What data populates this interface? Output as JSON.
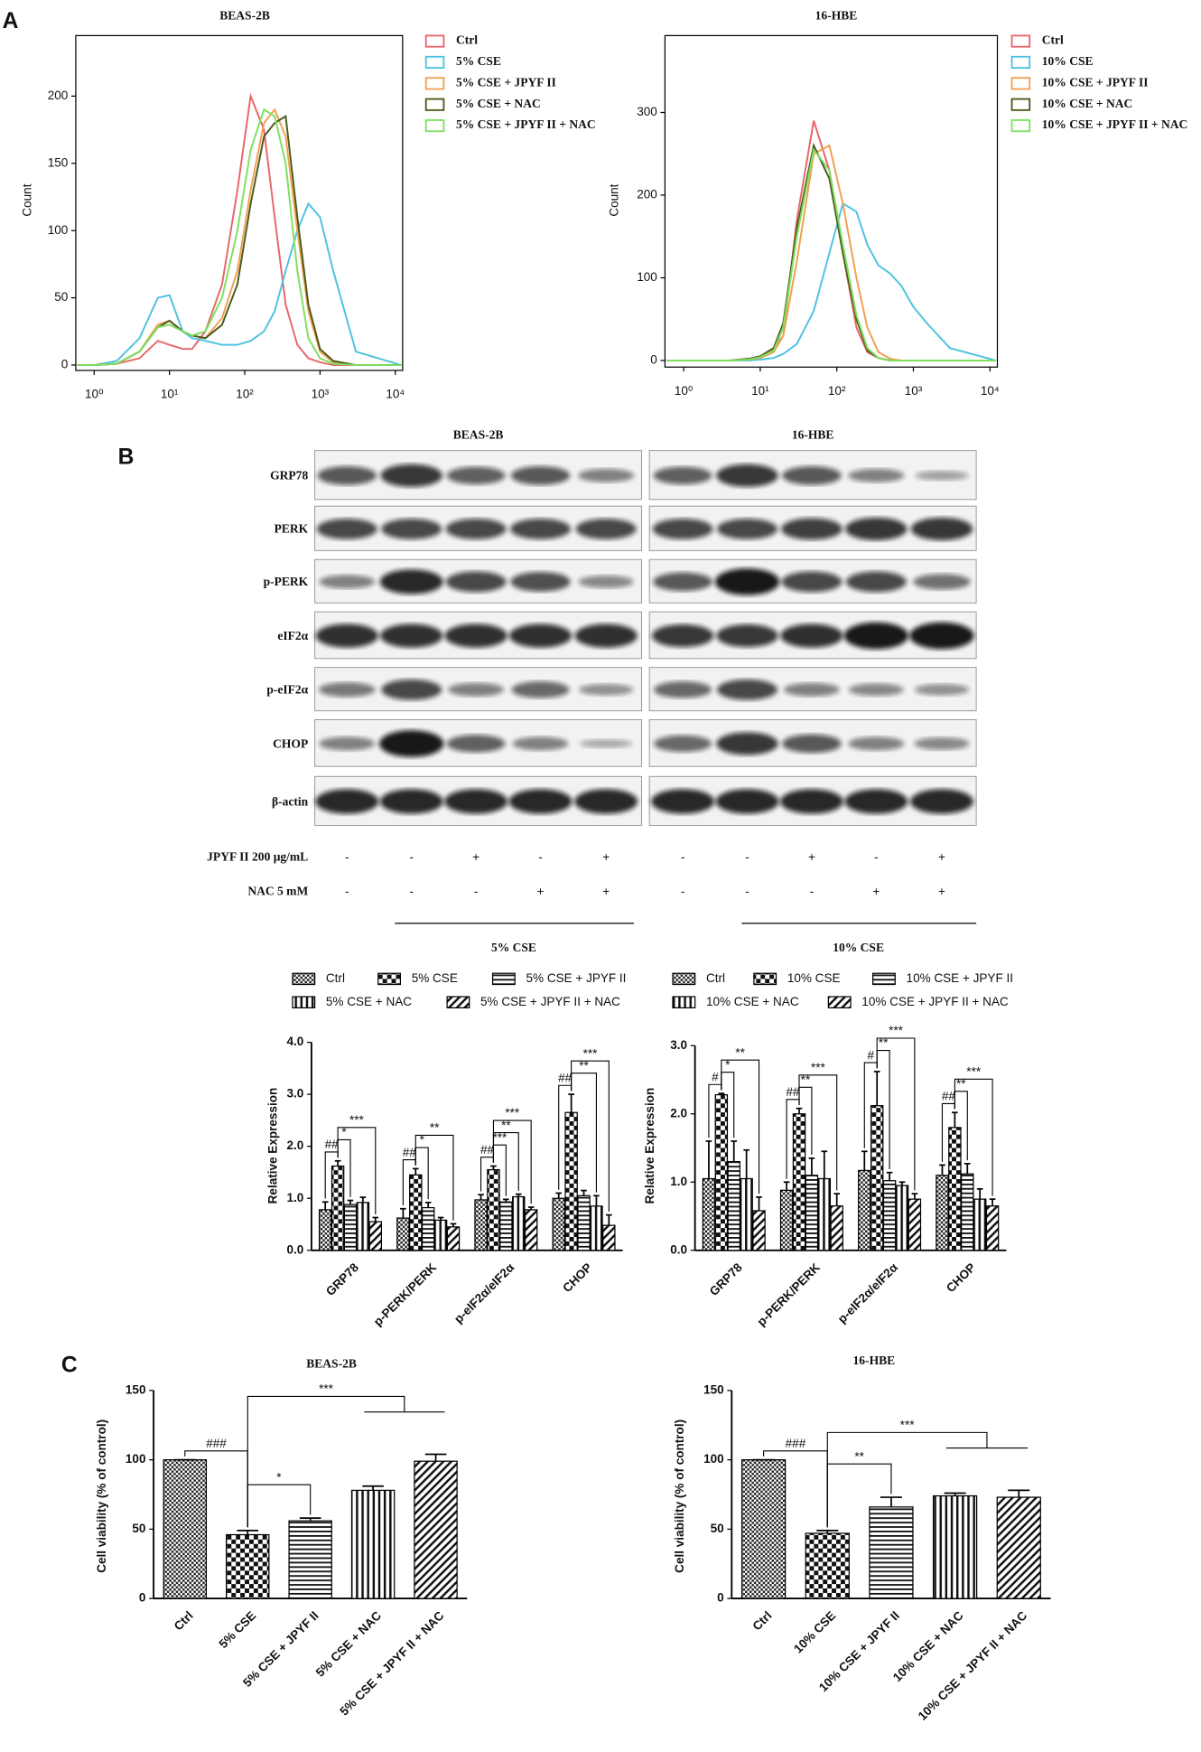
{
  "panel_labels": [
    "A",
    "B",
    "C"
  ],
  "western_blot": {
    "cell_lines": [
      "BEAS-2B",
      "16-HBE"
    ],
    "proteins": [
      "GRP78",
      "PERK",
      "p-PERK",
      "eIF2α",
      "p-eIF2α",
      "CHOP",
      "β-actin"
    ],
    "treatments": [
      {
        "label": "JPYF II 200 μg/mL",
        "signs": [
          "-",
          "-",
          "+",
          "-",
          "+",
          "-",
          "-",
          "+",
          "-",
          "+"
        ]
      },
      {
        "label": "NAC 5 mM",
        "signs": [
          "-",
          "-",
          "-",
          "+",
          "+",
          "-",
          "-",
          "-",
          "+",
          "+"
        ]
      }
    ],
    "groups": [
      "5% CSE",
      "10% CSE"
    ]
  },
  "chart_data": [
    {
      "type": "line",
      "title": "BEAS-2B",
      "y_label": "Count",
      "x_scale": "log",
      "x": [
        0.6,
        1,
        2,
        4,
        7,
        10,
        15,
        20,
        30,
        50,
        80,
        120,
        180,
        250,
        350,
        500,
        700,
        1000,
        1500,
        3000,
        12000
      ],
      "xlim": [
        0.57,
        12500
      ],
      "xticks": [
        {
          "value": 1,
          "label": "10⁰"
        },
        {
          "value": 10,
          "label": "10¹"
        },
        {
          "value": 100,
          "label": "10²"
        },
        {
          "value": 1000,
          "label": "10³"
        },
        {
          "value": 10000,
          "label": "10⁴"
        }
      ],
      "ylim": [
        -4,
        245
      ],
      "yticks": [
        0,
        50,
        100,
        150,
        200
      ],
      "series": [
        {
          "name": "Ctrl",
          "color": "#e8666a",
          "values": [
            0,
            0,
            1,
            5,
            18,
            15,
            12,
            12,
            25,
            60,
            130,
            200,
            175,
            110,
            45,
            15,
            5,
            2,
            0,
            0,
            0
          ]
        },
        {
          "name": "5% CSE",
          "color": "#4ec3e0",
          "values": [
            0,
            0,
            3,
            20,
            50,
            52,
            25,
            20,
            18,
            15,
            15,
            18,
            25,
            40,
            70,
            100,
            120,
            110,
            70,
            10,
            0
          ]
        },
        {
          "name": "5% CSE + JPYF II",
          "color": "#f0a050",
          "values": [
            0,
            0,
            1,
            10,
            30,
            33,
            25,
            22,
            20,
            35,
            70,
            130,
            180,
            190,
            170,
            100,
            40,
            10,
            2,
            0,
            0
          ]
        },
        {
          "name": "5% CSE + NAC",
          "color": "#4a5a1a",
          "values": [
            0,
            0,
            1,
            10,
            28,
            33,
            25,
            22,
            20,
            30,
            60,
            120,
            170,
            180,
            185,
            110,
            45,
            12,
            3,
            0,
            0
          ]
        },
        {
          "name": "5% CSE + JPYF II + NAC",
          "color": "#7fe060",
          "values": [
            0,
            0,
            1,
            10,
            28,
            30,
            25,
            22,
            25,
            50,
            100,
            160,
            190,
            185,
            150,
            70,
            20,
            5,
            1,
            0,
            0
          ]
        }
      ]
    },
    {
      "type": "line",
      "title": "16-HBE",
      "y_label": "Count",
      "x_scale": "log",
      "x": [
        0.6,
        1,
        2,
        4,
        7,
        10,
        15,
        20,
        30,
        50,
        80,
        120,
        180,
        250,
        350,
        500,
        700,
        1000,
        1500,
        3000,
        12000
      ],
      "xlim": [
        0.57,
        12500
      ],
      "xticks": [
        {
          "value": 1,
          "label": "10⁰"
        },
        {
          "value": 10,
          "label": "10¹"
        },
        {
          "value": 100,
          "label": "10²"
        },
        {
          "value": 1000,
          "label": "10³"
        },
        {
          "value": 10000,
          "label": "10⁴"
        }
      ],
      "ylim": [
        -8,
        393
      ],
      "yticks": [
        0,
        100,
        200,
        300
      ],
      "series": [
        {
          "name": "Ctrl",
          "color": "#e8666a",
          "values": [
            0,
            0,
            0,
            0,
            2,
            5,
            15,
            30,
            170,
            290,
            230,
            130,
            40,
            10,
            3,
            0,
            0,
            0,
            0,
            0,
            0
          ]
        },
        {
          "name": "10% CSE",
          "color": "#4ec3e0",
          "values": [
            0,
            0,
            0,
            0,
            0,
            1,
            3,
            8,
            20,
            60,
            130,
            190,
            180,
            140,
            115,
            105,
            90,
            65,
            45,
            15,
            0
          ]
        },
        {
          "name": "10% CSE + JPYF II",
          "color": "#f0a050",
          "values": [
            0,
            0,
            0,
            0,
            1,
            3,
            10,
            30,
            120,
            250,
            260,
            190,
            100,
            40,
            10,
            2,
            0,
            0,
            0,
            0,
            0
          ]
        },
        {
          "name": "10% CSE + NAC",
          "color": "#4a5a1a",
          "values": [
            0,
            0,
            0,
            0,
            2,
            5,
            15,
            45,
            160,
            260,
            220,
            130,
            50,
            12,
            3,
            0,
            0,
            0,
            0,
            0,
            0
          ]
        },
        {
          "name": "10% CSE + JPYF II + NAC",
          "color": "#7fe060",
          "values": [
            0,
            0,
            0,
            0,
            1,
            4,
            12,
            40,
            150,
            255,
            230,
            140,
            55,
            15,
            3,
            0,
            0,
            0,
            0,
            0,
            0
          ]
        }
      ]
    },
    {
      "type": "bar",
      "y_label": "Relative Expression",
      "categories": [
        "GRP78",
        "p-PERK/PERK",
        "p-eIF2α/eIF2α",
        "CHOP"
      ],
      "ylim": [
        0,
        4
      ],
      "yticks": [
        {
          "value": 0,
          "label": "0.0"
        },
        {
          "value": 1,
          "label": "1.0"
        },
        {
          "value": 2,
          "label": "2.0"
        },
        {
          "value": 3,
          "label": "3.0"
        },
        {
          "value": 4,
          "label": "4.0"
        }
      ],
      "series": [
        {
          "name": "Ctrl",
          "color": "#000000",
          "pattern": "checker",
          "values": [
            0.78,
            0.62,
            0.97,
            1.0
          ],
          "errors": [
            0.15,
            0.18,
            0.1,
            0.1
          ]
        },
        {
          "name": "5% CSE",
          "color": "#000000",
          "pattern": "big-checker",
          "values": [
            1.62,
            1.45,
            1.55,
            2.65
          ],
          "errors": [
            0.1,
            0.12,
            0.07,
            0.35
          ]
        },
        {
          "name": "5% CSE + JPYF II",
          "color": "#000000",
          "pattern": "hlines",
          "values": [
            0.88,
            0.82,
            0.93,
            1.05
          ],
          "errors": [
            0.08,
            0.1,
            0.05,
            0.1
          ]
        },
        {
          "name": "5% CSE + NAC",
          "color": "#000000",
          "pattern": "vlines",
          "values": [
            0.92,
            0.58,
            1.03,
            0.85
          ],
          "errors": [
            0.1,
            0.05,
            0.05,
            0.2
          ]
        },
        {
          "name": "5% CSE + JPYF II + NAC",
          "color": "#000000",
          "pattern": "diagonal",
          "values": [
            0.55,
            0.45,
            0.78,
            0.48
          ],
          "errors": [
            0.08,
            0.06,
            0.05,
            0.2
          ]
        }
      ],
      "annotations": [
        {
          "text": "##",
          "category": 0,
          "bars": [
            0,
            1
          ]
        },
        {
          "text": "*",
          "category": 0,
          "bars": [
            1,
            2
          ]
        },
        {
          "text": "***",
          "category": 0,
          "bars": [
            1,
            4
          ]
        },
        {
          "text": "##",
          "category": 1,
          "bars": [
            0,
            1
          ]
        },
        {
          "text": "*",
          "category": 1,
          "bars": [
            1,
            2
          ]
        },
        {
          "text": "**",
          "category": 1,
          "bars": [
            1,
            4
          ]
        },
        {
          "text": "##",
          "category": 2,
          "bars": [
            0,
            1
          ]
        },
        {
          "text": "***",
          "category": 2,
          "bars": [
            1,
            2
          ]
        },
        {
          "text": "**",
          "category": 2,
          "bars": [
            1,
            3
          ]
        },
        {
          "text": "***",
          "category": 2,
          "bars": [
            1,
            4
          ]
        },
        {
          "text": "##",
          "category": 3,
          "bars": [
            0,
            1
          ]
        },
        {
          "text": "**",
          "category": 3,
          "bars": [
            1,
            3
          ]
        },
        {
          "text": "***",
          "category": 3,
          "bars": [
            1,
            4
          ]
        }
      ]
    },
    {
      "type": "bar",
      "y_label": "Relative Expression",
      "categories": [
        "GRP78",
        "p-PERK/PERK",
        "p-eIF2α/eIF2α",
        "CHOP"
      ],
      "ylim": [
        0,
        3
      ],
      "yticks": [
        {
          "value": 0,
          "label": "0.0"
        },
        {
          "value": 1,
          "label": "1.0"
        },
        {
          "value": 2,
          "label": "2.0"
        },
        {
          "value": 3,
          "label": "3.0"
        }
      ],
      "series": [
        {
          "name": "Ctrl",
          "color": "#000000",
          "pattern": "checker",
          "values": [
            1.05,
            0.88,
            1.17,
            1.1
          ],
          "errors": [
            0.55,
            0.12,
            0.28,
            0.15
          ]
        },
        {
          "name": "10% CSE",
          "color": "#000000",
          "pattern": "big-checker",
          "values": [
            2.28,
            2.0,
            2.12,
            1.8
          ],
          "errors": [
            0.02,
            0.08,
            0.5,
            0.22
          ]
        },
        {
          "name": "10% CSE + JPYF II",
          "color": "#000000",
          "pattern": "hlines",
          "values": [
            1.3,
            1.1,
            1.02,
            1.12
          ],
          "errors": [
            0.3,
            0.25,
            0.12,
            0.15
          ]
        },
        {
          "name": "10% CSE + NAC",
          "color": "#000000",
          "pattern": "vlines",
          "values": [
            1.05,
            1.05,
            0.95,
            0.75
          ],
          "errors": [
            0.42,
            0.4,
            0.05,
            0.15
          ]
        },
        {
          "name": "10% CSE + JPYF II + NAC",
          "color": "#000000",
          "pattern": "diagonal",
          "values": [
            0.58,
            0.65,
            0.75,
            0.65
          ],
          "errors": [
            0.2,
            0.18,
            0.08,
            0.1
          ]
        }
      ],
      "annotations": [
        {
          "text": "#",
          "category": 0,
          "bars": [
            0,
            1
          ]
        },
        {
          "text": "*",
          "category": 0,
          "bars": [
            1,
            2
          ]
        },
        {
          "text": "**",
          "category": 0,
          "bars": [
            1,
            4
          ]
        },
        {
          "text": "##",
          "category": 1,
          "bars": [
            0,
            1
          ]
        },
        {
          "text": "**",
          "category": 1,
          "bars": [
            1,
            2
          ]
        },
        {
          "text": "***",
          "category": 1,
          "bars": [
            1,
            4
          ]
        },
        {
          "text": "#",
          "category": 2,
          "bars": [
            0,
            1
          ]
        },
        {
          "text": "**",
          "category": 2,
          "bars": [
            1,
            2
          ]
        },
        {
          "text": "***",
          "category": 2,
          "bars": [
            1,
            4
          ]
        },
        {
          "text": "##",
          "category": 3,
          "bars": [
            0,
            1
          ]
        },
        {
          "text": "**",
          "category": 3,
          "bars": [
            1,
            2
          ]
        },
        {
          "text": "***",
          "category": 3,
          "bars": [
            1,
            4
          ]
        }
      ]
    },
    {
      "type": "bar",
      "title": "BEAS-2B",
      "y_label": "Cell viability (% of control)",
      "categories": [
        "Ctrl",
        "5% CSE",
        "5% CSE + JPYF II",
        "5% CSE + NAC",
        "5% CSE + JPYF II + NAC"
      ],
      "values": [
        100,
        46,
        56,
        78,
        99
      ],
      "errors": [
        0,
        3,
        2,
        3,
        5
      ],
      "color": "#000000",
      "patterns": [
        "checker",
        "big-checker",
        "hlines",
        "vlines",
        "diagonal"
      ],
      "ylim": [
        0,
        150
      ],
      "yticks": [
        0,
        50,
        100,
        150
      ],
      "annotations": [
        {
          "text": "###",
          "bars": [
            0,
            1
          ]
        },
        {
          "text": "*",
          "bars": [
            1,
            2
          ]
        },
        {
          "text": "***",
          "bars": [
            1,
            3,
            4
          ]
        }
      ]
    },
    {
      "type": "bar",
      "title": "16-HBE",
      "y_label": "Cell viability (% of control)",
      "categories": [
        "Ctrl",
        "10% CSE",
        "10% CSE + JPYF II",
        "10% CSE + NAC",
        "10% CSE + JPYF II + NAC"
      ],
      "values": [
        100,
        47,
        66,
        74,
        73
      ],
      "errors": [
        0,
        2,
        7,
        2,
        5
      ],
      "color": "#000000",
      "patterns": [
        "checker",
        "big-checker",
        "hlines",
        "vlines",
        "diagonal"
      ],
      "ylim": [
        0,
        150
      ],
      "yticks": [
        0,
        50,
        100,
        150
      ],
      "annotations": [
        {
          "text": "###",
          "bars": [
            0,
            1
          ]
        },
        {
          "text": "**",
          "bars": [
            1,
            2
          ]
        },
        {
          "text": "***",
          "bars": [
            1,
            3,
            4
          ]
        }
      ]
    }
  ]
}
